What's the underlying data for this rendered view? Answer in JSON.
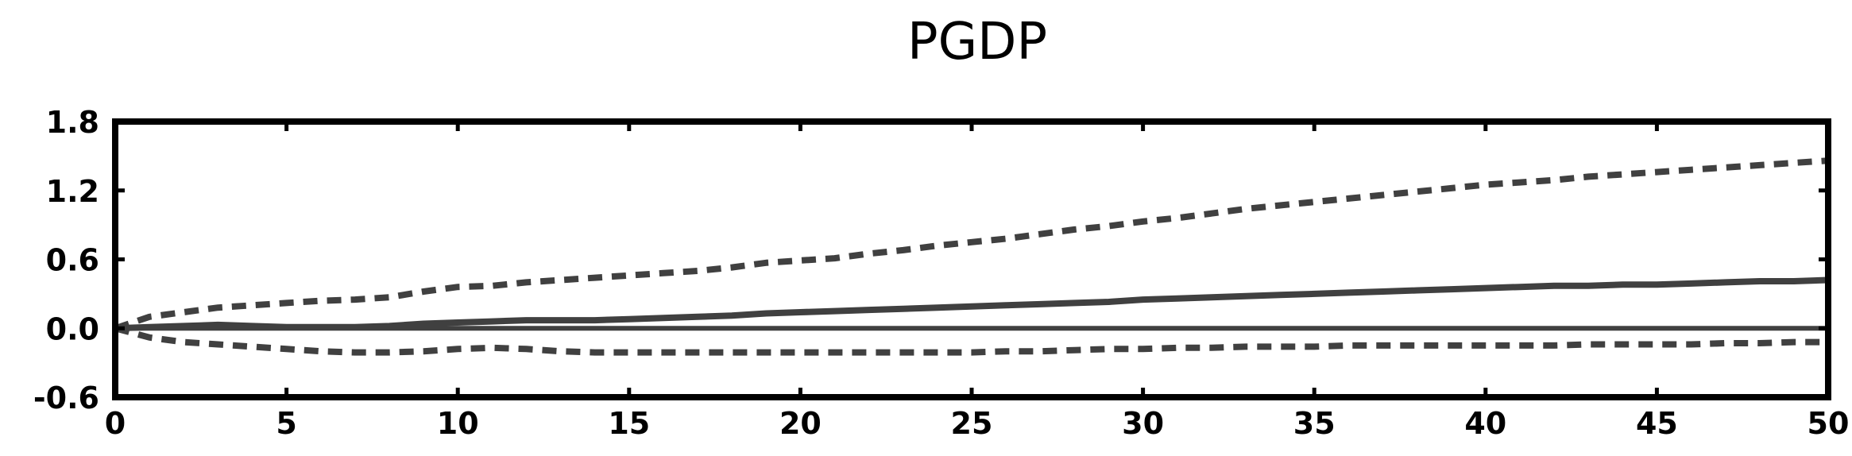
{
  "chart_data": {
    "type": "line",
    "title": "PGDP",
    "xlabel": "",
    "ylabel": "",
    "xlim": [
      0,
      50
    ],
    "ylim": [
      -0.6,
      1.8
    ],
    "x_ticks": [
      "0",
      "5",
      "10",
      "15",
      "20",
      "25",
      "30",
      "35",
      "40",
      "45",
      "50"
    ],
    "y_ticks": [
      "-0.6",
      "0.0",
      "0.6",
      "1.2",
      "1.8"
    ],
    "grid": false,
    "legend": "none",
    "zero_line": 0.0,
    "x": [
      0,
      1,
      2,
      3,
      4,
      5,
      6,
      7,
      8,
      9,
      10,
      11,
      12,
      13,
      14,
      15,
      16,
      17,
      18,
      19,
      20,
      21,
      22,
      23,
      24,
      25,
      26,
      27,
      28,
      29,
      30,
      31,
      32,
      33,
      34,
      35,
      36,
      37,
      38,
      39,
      40,
      41,
      42,
      43,
      44,
      45,
      46,
      47,
      48,
      49,
      50
    ],
    "series": [
      {
        "style": "solid",
        "color": "#404040",
        "values": [
          0.0,
          0.01,
          0.02,
          0.03,
          0.02,
          0.01,
          0.01,
          0.01,
          0.02,
          0.04,
          0.05,
          0.06,
          0.07,
          0.07,
          0.07,
          0.08,
          0.09,
          0.1,
          0.11,
          0.13,
          0.14,
          0.15,
          0.16,
          0.17,
          0.18,
          0.19,
          0.2,
          0.21,
          0.22,
          0.23,
          0.25,
          0.26,
          0.27,
          0.28,
          0.29,
          0.3,
          0.31,
          0.32,
          0.33,
          0.34,
          0.35,
          0.36,
          0.37,
          0.37,
          0.38,
          0.38,
          0.39,
          0.4,
          0.41,
          0.41,
          0.42
        ]
      },
      {
        "style": "dashed",
        "color": "#404040",
        "values": [
          0.0,
          0.1,
          0.14,
          0.18,
          0.2,
          0.22,
          0.24,
          0.25,
          0.27,
          0.32,
          0.36,
          0.37,
          0.4,
          0.42,
          0.44,
          0.46,
          0.48,
          0.5,
          0.53,
          0.57,
          0.59,
          0.61,
          0.65,
          0.68,
          0.72,
          0.75,
          0.78,
          0.82,
          0.86,
          0.89,
          0.93,
          0.96,
          1.0,
          1.04,
          1.07,
          1.1,
          1.13,
          1.16,
          1.19,
          1.22,
          1.25,
          1.27,
          1.29,
          1.32,
          1.34,
          1.36,
          1.38,
          1.4,
          1.42,
          1.44,
          1.46
        ]
      },
      {
        "style": "dashed",
        "color": "#404040",
        "values": [
          0.0,
          -0.08,
          -0.12,
          -0.14,
          -0.16,
          -0.18,
          -0.2,
          -0.21,
          -0.21,
          -0.2,
          -0.18,
          -0.17,
          -0.18,
          -0.2,
          -0.21,
          -0.21,
          -0.21,
          -0.21,
          -0.21,
          -0.21,
          -0.21,
          -0.21,
          -0.21,
          -0.21,
          -0.21,
          -0.21,
          -0.2,
          -0.2,
          -0.19,
          -0.18,
          -0.18,
          -0.17,
          -0.17,
          -0.16,
          -0.16,
          -0.16,
          -0.15,
          -0.15,
          -0.15,
          -0.15,
          -0.15,
          -0.15,
          -0.15,
          -0.14,
          -0.14,
          -0.14,
          -0.14,
          -0.13,
          -0.13,
          -0.12,
          -0.12
        ]
      }
    ]
  }
}
